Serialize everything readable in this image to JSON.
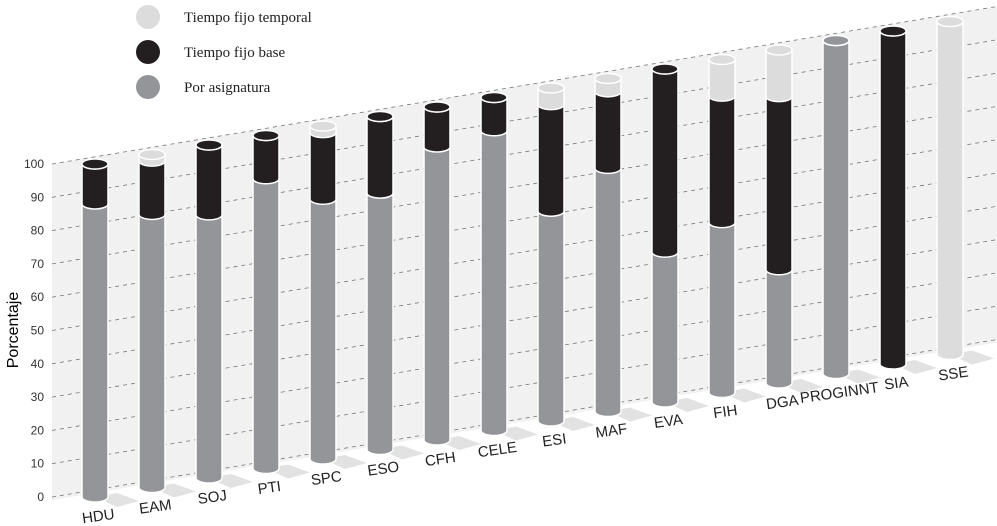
{
  "chart_data": {
    "type": "bar",
    "stacked": true,
    "ylabel": "Porcentaje",
    "categories": [
      "HDU",
      "EAM",
      "SOJ",
      "PTI",
      "SPC",
      "ESO",
      "CFH",
      "CELE",
      "ESI",
      "MAF",
      "EVA",
      "FIH",
      "DGA",
      "PROGINNT",
      "SIA",
      "SSE"
    ],
    "series": [
      {
        "name": "Tiempo fijo temporal",
        "color": "#dcdcdd",
        "values": [
          0,
          2,
          0,
          0,
          2,
          0,
          0,
          0,
          5,
          4,
          0,
          11,
          14,
          0,
          0,
          100
        ]
      },
      {
        "name": "Tiempo fijo base",
        "color": "#231f20",
        "values": [
          12,
          16,
          21,
          13,
          20,
          23,
          12,
          10,
          32,
          23,
          55,
          38,
          52,
          0,
          100,
          0
        ]
      },
      {
        "name": "Por asignatura",
        "color": "#939598",
        "values": [
          88,
          82,
          79,
          87,
          78,
          77,
          88,
          90,
          63,
          73,
          45,
          51,
          34,
          100,
          0,
          0
        ]
      }
    ],
    "ylim": [
      0,
      100
    ],
    "yticks": [
      0,
      10,
      20,
      30,
      40,
      50,
      60,
      70,
      80,
      90,
      100
    ],
    "grid": true
  }
}
